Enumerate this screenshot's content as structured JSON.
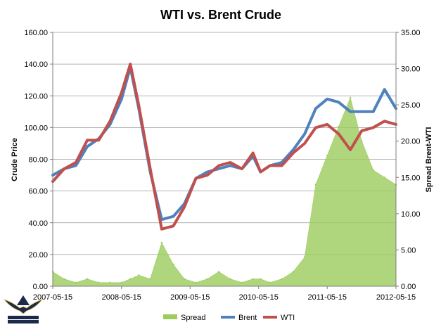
{
  "chart_data": {
    "type": "line",
    "title": "WTI vs. Brent Crude",
    "ylabel": "Crude Price",
    "y2label": "Spread Brent-WTI",
    "ylim": [
      0,
      160
    ],
    "y2lim": [
      0,
      35
    ],
    "yticks": [
      "0.00",
      "20.00",
      "40.00",
      "60.00",
      "80.00",
      "100.00",
      "120.00",
      "140.00",
      "160.00"
    ],
    "y2ticks": [
      "0.00",
      "5.00",
      "10.00",
      "15.00",
      "20.00",
      "25.00",
      "30.00",
      "35.00"
    ],
    "xticks": [
      "2007-05-15",
      "2008-05-15",
      "2009-05-15",
      "2010-05-15",
      "2011-05-15",
      "2012-05-15"
    ],
    "legend": "bottom",
    "grid": true,
    "x": [
      "2007-05-15",
      "2007-07-15",
      "2007-09-15",
      "2007-11-15",
      "2008-01-15",
      "2008-03-15",
      "2008-05-15",
      "2008-07-01",
      "2008-08-15",
      "2008-10-15",
      "2008-12-15",
      "2009-02-15",
      "2009-04-15",
      "2009-06-15",
      "2009-08-15",
      "2009-10-15",
      "2009-12-15",
      "2010-02-15",
      "2010-04-15",
      "2010-05-25",
      "2010-07-15",
      "2010-09-15",
      "2010-11-15",
      "2011-01-15",
      "2011-03-15",
      "2011-05-15",
      "2011-07-15",
      "2011-09-15",
      "2011-11-15",
      "2012-01-15",
      "2012-03-15",
      "2012-05-15"
    ],
    "series": [
      {
        "name": "Spread",
        "type": "area",
        "axis": "right",
        "color": "#9bcc5c",
        "values": [
          2,
          1,
          0.5,
          1,
          0.5,
          0.5,
          0.5,
          1,
          1.5,
          1,
          6,
          3,
          1,
          0.5,
          1,
          2,
          1,
          0.5,
          1,
          1,
          0.5,
          1,
          2,
          4,
          14,
          18,
          22,
          26,
          20,
          16,
          15,
          14
        ]
      },
      {
        "name": "Brent",
        "type": "line",
        "axis": "left",
        "color": "#4f81bd",
        "values": [
          70,
          74,
          76,
          88,
          93,
          102,
          118,
          138,
          112,
          72,
          42,
          44,
          52,
          68,
          72,
          74,
          76,
          74,
          82,
          72,
          76,
          78,
          86,
          96,
          112,
          118,
          116,
          110,
          110,
          110,
          124,
          112
        ]
      },
      {
        "name": "WTI",
        "type": "line",
        "axis": "left",
        "color": "#c0504d",
        "values": [
          66,
          74,
          78,
          92,
          92,
          104,
          122,
          140,
          114,
          74,
          36,
          38,
          50,
          68,
          70,
          76,
          78,
          74,
          84,
          72,
          76,
          76,
          84,
          90,
          100,
          102,
          96,
          86,
          98,
          100,
          104,
          102
        ]
      }
    ]
  }
}
